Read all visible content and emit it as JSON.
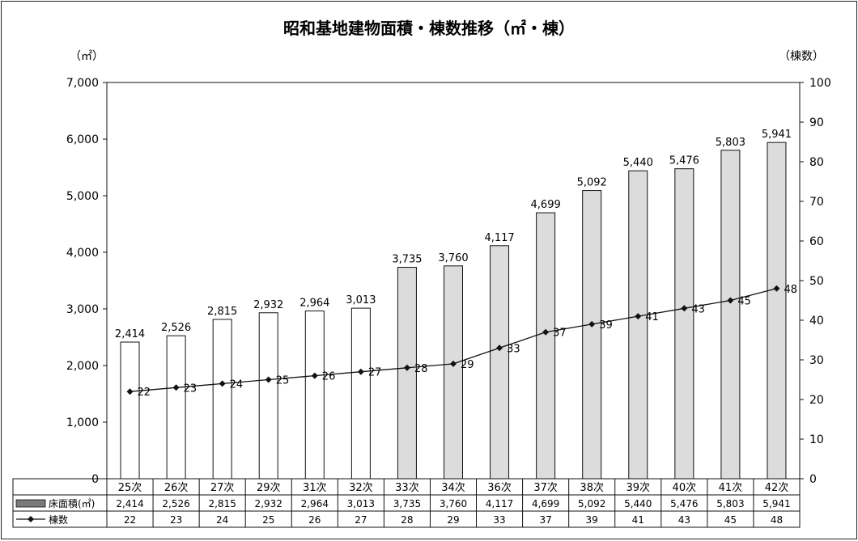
{
  "chart_data": {
    "type": "bar",
    "title": "昭和基地建物面積・棟数推移（㎡・棟）",
    "y_left_unit": "（㎡）",
    "y_right_unit": "（棟数）",
    "y_left_ticks": [
      "0",
      "1,000",
      "2,000",
      "3,000",
      "4,000",
      "5,000",
      "6,000",
      "7,000"
    ],
    "y_right_ticks": [
      "0",
      "10",
      "20",
      "30",
      "40",
      "50",
      "60",
      "70",
      "80",
      "90",
      "100"
    ],
    "ylim_left": [
      0,
      7000
    ],
    "ylim_right": [
      0,
      100
    ],
    "categories": [
      "25次",
      "26次",
      "27次",
      "29次",
      "31次",
      "32次",
      "33次",
      "34次",
      "36次",
      "37次",
      "38次",
      "39次",
      "40次",
      "41次",
      "42次"
    ],
    "series": [
      {
        "name": "床面積(㎡)",
        "type": "bar",
        "axis": "left",
        "values": [
          2414,
          2526,
          2815,
          2932,
          2964,
          3013,
          3735,
          3760,
          4117,
          4699,
          5092,
          5440,
          5476,
          5803,
          5941
        ],
        "labels": [
          "2,414",
          "2,526",
          "2,815",
          "2,932",
          "2,964",
          "3,013",
          "3,735",
          "3,760",
          "4,117",
          "4,699",
          "5,092",
          "5,440",
          "5,476",
          "5,803",
          "5,941"
        ]
      },
      {
        "name": "棟数",
        "type": "line",
        "axis": "right",
        "values": [
          22,
          23,
          24,
          25,
          26,
          27,
          28,
          29,
          33,
          37,
          39,
          41,
          43,
          45,
          48
        ],
        "labels": [
          "22",
          "23",
          "24",
          "25",
          "26",
          "27",
          "28",
          "29",
          "33",
          "37",
          "39",
          "41",
          "43",
          "45",
          "48"
        ]
      }
    ],
    "shaded_from_index": 6,
    "colors": {
      "bar_outline": "#111111",
      "bar_plain": "#ffffff",
      "bar_shaded": "#dcdcdc",
      "line": "#111111",
      "legend_swatch": "#7a7a7a"
    },
    "grid": false,
    "legend": "table-below"
  }
}
